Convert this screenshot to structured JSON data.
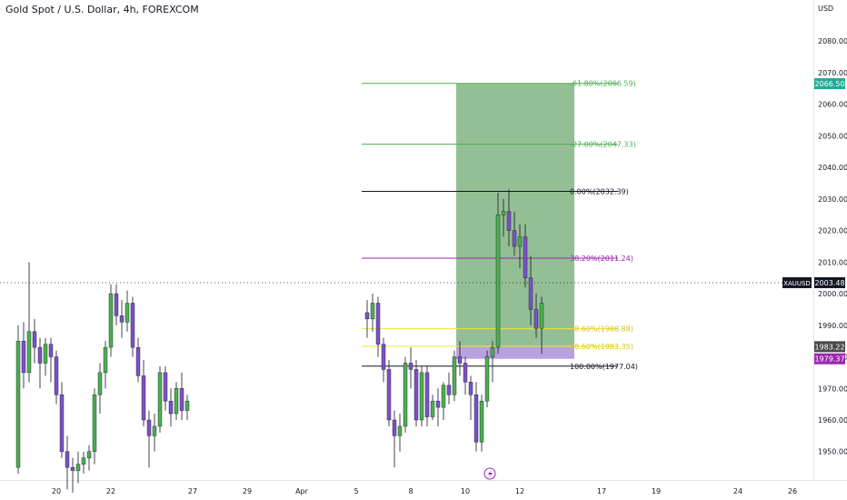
{
  "title": "Gold Spot / U.S. Dollar, 4h, FOREXCOM",
  "currency": "USD",
  "chart_data": {
    "type": "candlestick",
    "ylim": [
      1941,
      2093
    ],
    "y_ticks": [
      1950,
      1960,
      1970,
      1980,
      1990,
      2000,
      2010,
      2020,
      2030,
      2040,
      2050,
      2060,
      2070,
      2080
    ],
    "x_ticks": [
      {
        "label": "20",
        "i": 7
      },
      {
        "label": "22",
        "i": 17
      },
      {
        "label": "27",
        "i": 32
      },
      {
        "label": "29",
        "i": 42
      },
      {
        "label": "Apr",
        "i": 52
      },
      {
        "label": "5",
        "i": 62
      },
      {
        "label": "8",
        "i": 72
      },
      {
        "label": "10",
        "i": 82
      },
      {
        "label": "12",
        "i": 92
      },
      {
        "label": "17",
        "i": 107
      },
      {
        "label": "19",
        "i": 117
      },
      {
        "label": "24",
        "i": 132
      },
      {
        "label": "26",
        "i": 142
      }
    ],
    "grid": false,
    "candles": [
      [
        1938,
        1945,
        1935,
        1944
      ],
      [
        1944,
        1990,
        1943,
        1988
      ],
      [
        1988,
        1991,
        1968,
        1970
      ],
      [
        1970,
        1990,
        1967,
        1988
      ],
      [
        1988,
        2010,
        1978,
        1982
      ],
      [
        1982,
        1986,
        1972,
        1978
      ],
      [
        1978,
        1986,
        1974,
        1984
      ],
      [
        1984,
        1986,
        1972,
        1980
      ],
      [
        1980,
        1986,
        1965,
        1970
      ],
      [
        1970,
        1975,
        1948,
        1952
      ],
      [
        1952,
        1955,
        1938,
        1940
      ],
      [
        1940,
        1948,
        1937,
        1946
      ],
      [
        1946,
        1950,
        1943,
        1948
      ],
      [
        1948,
        1952,
        1944,
        1946
      ],
      [
        1946,
        1950,
        1940,
        1948
      ],
      [
        1948,
        1970,
        1946,
        1966
      ],
      [
        1966,
        1978,
        1962,
        1973
      ],
      [
        1973,
        1985,
        1970,
        1982
      ],
      [
        1982,
        2003,
        1980,
        2000
      ],
      [
        2000,
        2003,
        1990,
        1994
      ],
      [
        1994,
        1998,
        1986,
        1992
      ],
      [
        1992,
        2000,
        1988,
        1997
      ],
      [
        1997,
        1999,
        1980,
        1984
      ],
      [
        1984,
        1986,
        1972,
        1976
      ],
      [
        1976,
        1979,
        1958,
        1960
      ],
      [
        1960,
        1963,
        1945,
        1955
      ],
      [
        1955,
        1962,
        1950,
        1958
      ],
      [
        1958,
        1980,
        1956,
        1978
      ],
      [
        1978,
        1983,
        1970,
        1976
      ],
      [
        1976,
        1979,
        1958,
        1960
      ],
      [
        1960,
        1977,
        1958,
        1975
      ],
      [
        1975,
        1977,
        1958,
        1961
      ],
      [
        1961,
        1968,
        1960,
        1966
      ],
      [
        1966,
        1970,
        1958,
        1964
      ],
      [
        1964,
        1972,
        1960,
        1971
      ],
      [
        1971,
        1975,
        1965,
        1968
      ],
      [
        1968,
        1982,
        1966,
        1980
      ],
      [
        1980,
        1985,
        1974,
        1978
      ],
      [
        1978,
        1980,
        1968,
        1972
      ],
      [
        1972,
        1974,
        1960,
        1968
      ],
      [
        1968,
        1972,
        1950,
        1953
      ],
      [
        1953,
        1968,
        1950,
        1966
      ],
      [
        1966,
        1982,
        1964,
        1980
      ],
      [
        1980,
        1985,
        1972,
        1983
      ],
      [
        1983,
        2032,
        1981,
        2025
      ],
      [
        2025,
        2030,
        2018,
        2026
      ],
      [
        2026,
        2033,
        2015,
        2020
      ],
      [
        2020,
        2026,
        2012,
        2015
      ],
      [
        2015,
        2022,
        2008,
        2018
      ],
      [
        2018,
        2022,
        2002,
        2005
      ],
      [
        2005,
        2012,
        1990,
        1995
      ],
      [
        1995,
        2000,
        1986,
        1989
      ],
      [
        1989,
        1999,
        1981,
        1997
      ]
    ],
    "candle_i_offset": 32,
    "early_candles": [
      [
        1945,
        1990,
        1943,
        1985
      ],
      [
        1985,
        1991,
        1970,
        1975
      ],
      [
        1975,
        2010,
        1972,
        1988
      ],
      [
        1988,
        1992,
        1978,
        1983
      ],
      [
        1983,
        1986,
        1970,
        1978
      ],
      [
        1978,
        1986,
        1974,
        1984
      ],
      [
        1984,
        1986,
        1972,
        1980
      ],
      [
        1980,
        1982,
        1965,
        1968
      ],
      [
        1968,
        1972,
        1948,
        1950
      ],
      [
        1950,
        1955,
        1938,
        1945
      ],
      [
        1945,
        1948,
        1937,
        1944
      ],
      [
        1944,
        1950,
        1940,
        1946
      ],
      [
        1946,
        1950,
        1943,
        1948
      ],
      [
        1948,
        1952,
        1944,
        1950
      ],
      [
        1950,
        1970,
        1946,
        1968
      ],
      [
        1968,
        1978,
        1962,
        1975
      ],
      [
        1975,
        1985,
        1970,
        1983
      ],
      [
        1983,
        2003,
        1980,
        2000
      ],
      [
        2000,
        2003,
        1990,
        1993
      ],
      [
        1993,
        1998,
        1986,
        1991
      ],
      [
        1991,
        2001,
        1988,
        1997
      ],
      [
        1997,
        1999,
        1980,
        1983
      ],
      [
        1983,
        1986,
        1972,
        1974
      ],
      [
        1974,
        1979,
        1958,
        1960
      ],
      [
        1960,
        1963,
        1945,
        1955
      ],
      [
        1955,
        1962,
        1950,
        1958
      ],
      [
        1958,
        1977,
        1956,
        1975
      ],
      [
        1975,
        1977,
        1963,
        1966
      ],
      [
        1966,
        1970,
        1958,
        1962
      ],
      [
        1962,
        1972,
        1960,
        1970
      ],
      [
        1970,
        1975,
        1960,
        1963
      ],
      [
        1963,
        1968,
        1960,
        1966
      ]
    ],
    "fib_levels": [
      {
        "label": "-61.80%(2066.59)",
        "value": 2066.59,
        "color": "#4caf50"
      },
      {
        "label": "-27.00%(2047.33)",
        "value": 2047.33,
        "color": "#4caf50"
      },
      {
        "label": "0.00%(2032.39)",
        "value": 2032.39,
        "color": "#131722"
      },
      {
        "label": "38.20%(2011.24)",
        "value": 2011.24,
        "color": "#9c27b0"
      },
      {
        "label": "78.60%(1988.88)",
        "value": 1988.88,
        "color": "#f2e32f"
      },
      {
        "label": "88.60%(1983.35)",
        "value": 1983.35,
        "color": "#f2e32f"
      },
      {
        "label": "100.00%(1977.04)",
        "value": 1977.04,
        "color": "#131722"
      }
    ],
    "position": {
      "target": 2066.5,
      "entry": 1983.22,
      "stop": 1979.37
    },
    "current_price": {
      "symbol": "XAUUSD",
      "value": "2003.48",
      "price": 2003.48
    },
    "price_labels": [
      {
        "text": "2066.50",
        "price": 2066.5,
        "color": "#22ab94"
      },
      {
        "text": "1983.22",
        "price": 1983.22,
        "color": "#4a4a4a"
      },
      {
        "text": "1979.37",
        "price": 1979.37,
        "color": "#9c27b0"
      }
    ],
    "colors": {
      "up": "#4caf50",
      "down": "#7b52c8",
      "target_zone": "#88b889",
      "stop_zone": "#b39ddb"
    }
  }
}
